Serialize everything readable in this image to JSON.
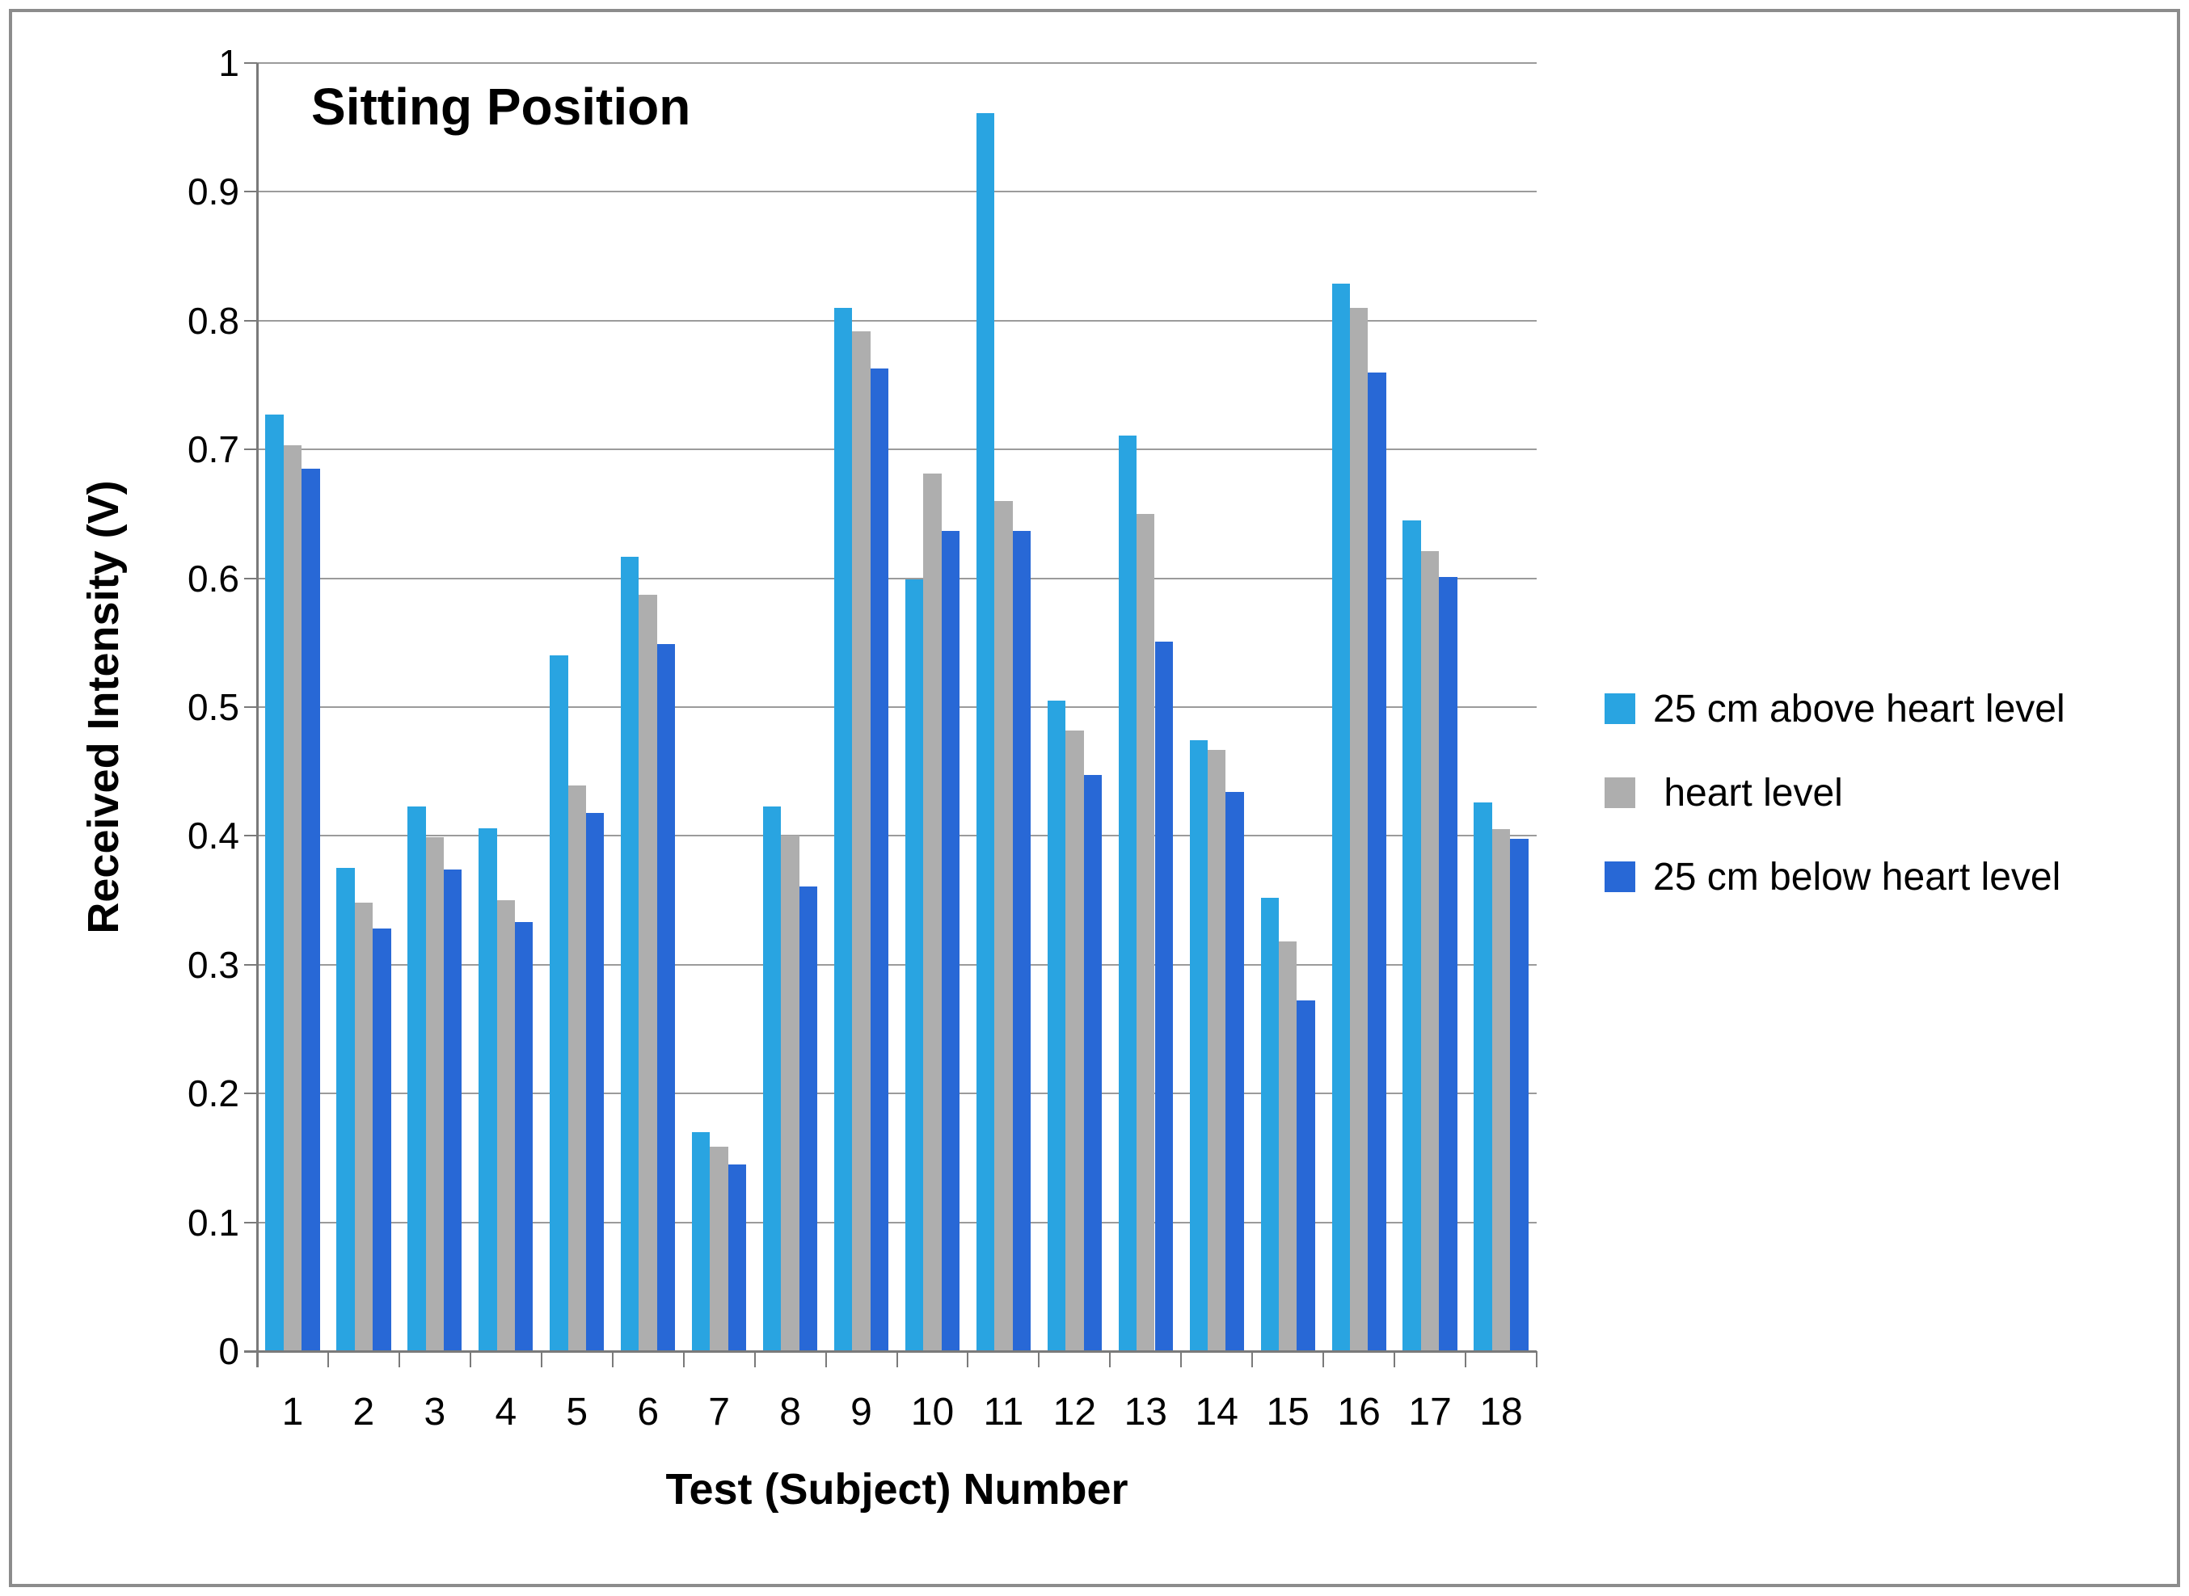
{
  "chart_data": {
    "type": "bar",
    "title": "Sitting Position",
    "xlabel": "Test (Subject) Number",
    "ylabel": "Received Intensity (V)",
    "categories": [
      "1",
      "2",
      "3",
      "4",
      "5",
      "6",
      "7",
      "8",
      "9",
      "10",
      "11",
      "12",
      "13",
      "14",
      "15",
      "16",
      "17",
      "18"
    ],
    "series": [
      {
        "name": "25 cm above heart level",
        "color": "#29a4e1",
        "values": [
          0.727,
          0.375,
          0.423,
          0.406,
          0.54,
          0.617,
          0.17,
          0.423,
          0.81,
          0.599,
          0.961,
          0.505,
          0.711,
          0.474,
          0.352,
          0.829,
          0.645,
          0.426
        ]
      },
      {
        "name": " heart level",
        "color": "#aeaeae",
        "values": [
          0.703,
          0.348,
          0.399,
          0.35,
          0.439,
          0.587,
          0.159,
          0.4,
          0.792,
          0.681,
          0.66,
          0.482,
          0.65,
          0.467,
          0.318,
          0.81,
          0.621,
          0.405
        ]
      },
      {
        "name": "25 cm below heart level",
        "color": "#2868d6",
        "values": [
          0.685,
          0.328,
          0.374,
          0.333,
          0.418,
          0.549,
          0.145,
          0.361,
          0.763,
          0.637,
          0.637,
          0.447,
          0.551,
          0.434,
          0.272,
          0.76,
          0.601,
          0.398
        ]
      }
    ],
    "ylim": [
      0,
      1
    ],
    "ytick_step": 0.1,
    "ytick_labels": [
      "0",
      "0.1",
      "0.2",
      "0.3",
      "0.4",
      "0.5",
      "0.6",
      "0.7",
      "0.8",
      "0.9",
      "1"
    ],
    "grid": "horizontal",
    "legend_position": "right"
  },
  "colors": {
    "gridline": "#9b9b9b",
    "axis": "#7a7a7a",
    "frame_border": "#8c8c8c",
    "text": "#000000"
  }
}
